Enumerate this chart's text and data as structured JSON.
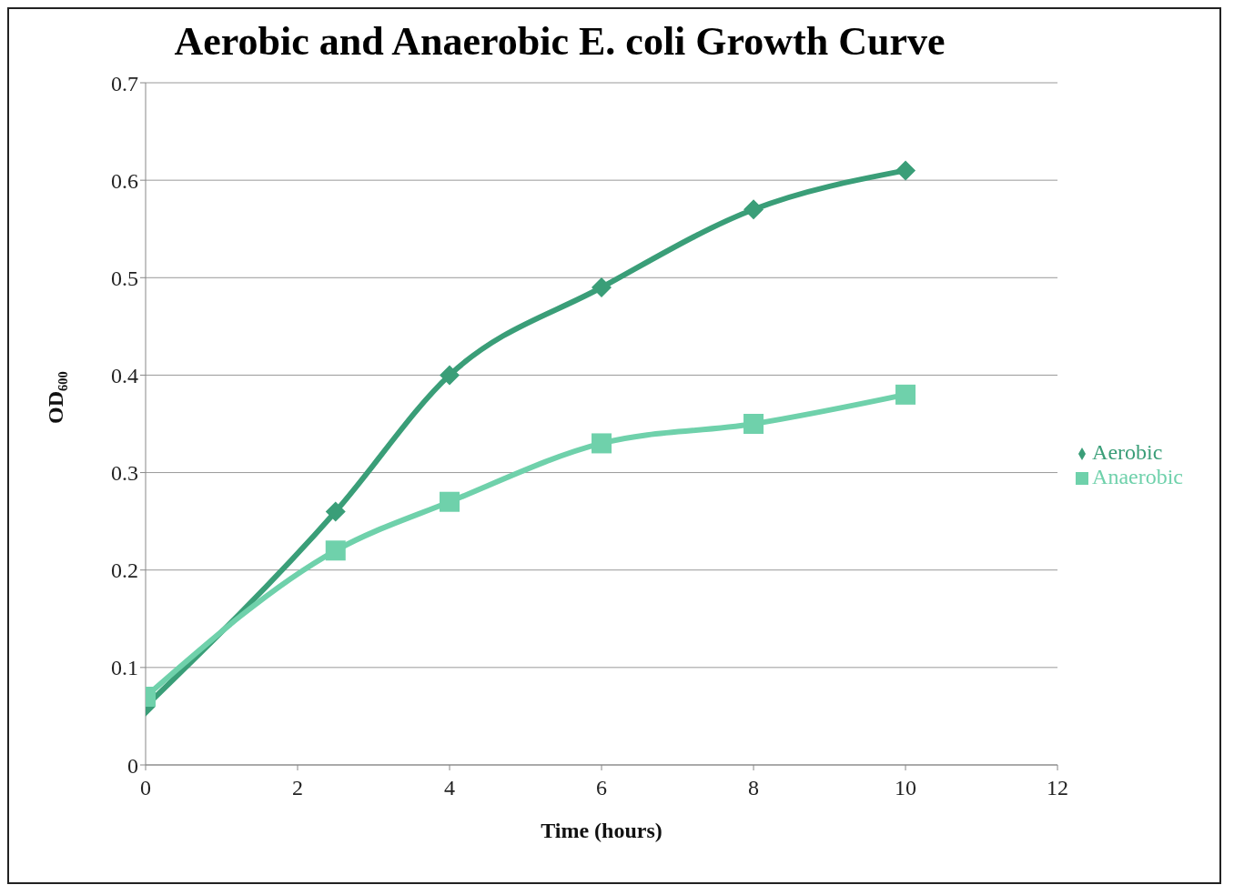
{
  "chart_data": {
    "type": "line",
    "title": "Aerobic and Anaerobic E. coli Growth Curve",
    "xlabel": "Time (hours)",
    "ylabel": "OD₆₀₀",
    "x": [
      0,
      2.5,
      4,
      6,
      8,
      10
    ],
    "series": [
      {
        "name": "Aerobic",
        "color": "#3a9e78",
        "marker": "diamond",
        "values": [
          0.06,
          0.26,
          0.4,
          0.49,
          0.57,
          0.61
        ]
      },
      {
        "name": "Anaerobic",
        "color": "#6fd1ab",
        "marker": "square",
        "values": [
          0.07,
          0.22,
          0.27,
          0.33,
          0.35,
          0.38
        ]
      }
    ],
    "xlim": [
      0,
      12
    ],
    "xticks": [
      0,
      2,
      4,
      6,
      8,
      10,
      12
    ],
    "ylim": [
      0,
      0.7
    ],
    "yticks": [
      0,
      0.1,
      0.2,
      0.3,
      0.4,
      0.5,
      0.6,
      0.7
    ],
    "grid": "y",
    "legend": "right",
    "line_style": "solid"
  }
}
